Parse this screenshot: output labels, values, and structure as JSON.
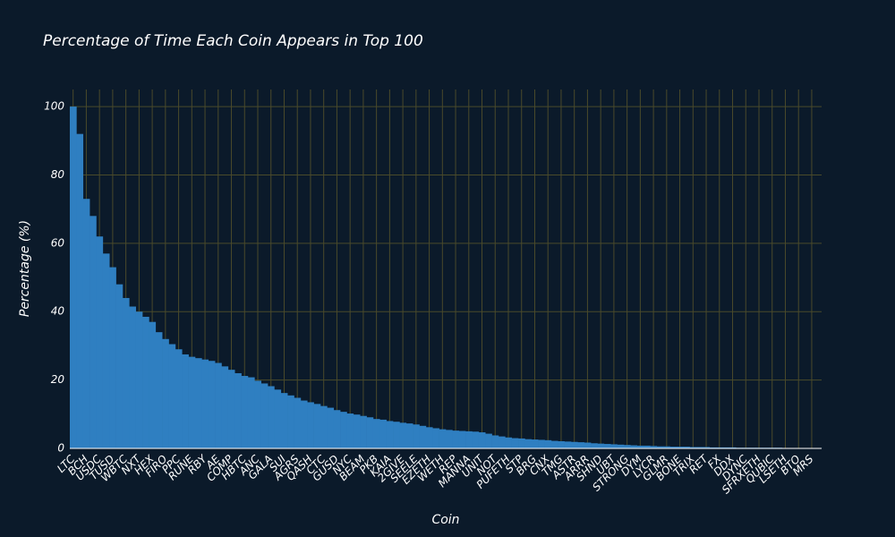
{
  "chart_data": {
    "type": "bar",
    "title": "Percentage of Time Each Coin Appears in Top 100",
    "xlabel": "Coin",
    "ylabel": "Percentage (%)",
    "color": "#2f7fc1",
    "grid": true,
    "categories": [
      "LTC",
      null,
      "BCH",
      null,
      "USDC",
      null,
      "TUSD",
      null,
      "WBTC",
      null,
      "NXT",
      null,
      "HEX",
      null,
      "FIRO",
      null,
      "PPC",
      null,
      "RUNE",
      null,
      "RBY",
      null,
      "AE",
      null,
      "COMP",
      null,
      "HBTC",
      null,
      "ANC",
      null,
      "GALA",
      null,
      "SUI",
      null,
      "AGRS",
      null,
      "QASH",
      null,
      "CTC",
      null,
      "GUSD",
      null,
      "NYC",
      null,
      "BEAM",
      null,
      "PKB",
      null,
      "KAIA",
      null,
      "2GIVE",
      null,
      "SEELE",
      null,
      "EZETH",
      null,
      "WETH",
      null,
      "REP",
      null,
      "MANNA",
      null,
      "UNIT",
      null,
      "NOT",
      null,
      "PUFETH",
      null,
      "STP",
      null,
      "BRG",
      null,
      "CNX",
      null,
      "TMG",
      null,
      "ASTR",
      null,
      "ARRR",
      null,
      "SHND",
      null,
      "UBT",
      null,
      "STRONG",
      null,
      "DYM",
      null,
      "LYCR",
      null,
      "GLMR",
      null,
      "BONE",
      null,
      "TRIX",
      null,
      "RET",
      null,
      "FX",
      null,
      "DDX",
      null,
      "DYNC",
      null,
      "SFRXETH",
      null,
      "QUBIC",
      null,
      "LSETH",
      null,
      "BTO",
      null,
      "MRS",
      null
    ],
    "values": [
      100,
      92,
      73,
      68,
      62,
      57,
      53,
      48,
      44,
      41.5,
      40,
      38.5,
      37,
      34,
      32,
      30.5,
      29,
      27.5,
      26.8,
      26.4,
      26,
      25.6,
      25,
      24,
      23,
      22,
      21.2,
      20.8,
      19.8,
      19,
      18.2,
      17.2,
      16.2,
      15.5,
      14.8,
      14,
      13.5,
      13,
      12.4,
      11.9,
      11.2,
      10.7,
      10.2,
      9.9,
      9.5,
      9.1,
      8.6,
      8.4,
      8,
      7.8,
      7.5,
      7.3,
      7,
      6.6,
      6.2,
      5.9,
      5.6,
      5.4,
      5.2,
      5.1,
      5,
      4.9,
      4.7,
      4.3,
      3.8,
      3.5,
      3.2,
      3,
      2.9,
      2.7,
      2.6,
      2.5,
      2.4,
      2.2,
      2.1,
      2,
      1.9,
      1.8,
      1.7,
      1.5,
      1.4,
      1.3,
      1.2,
      1.1,
      1,
      0.9,
      0.8,
      0.8,
      0.7,
      0.6,
      0.6,
      0.5,
      0.5,
      0.5,
      0.4,
      0.4,
      0.4,
      0.3,
      0.3,
      0.3,
      0.3,
      0.2,
      0.2,
      0.2,
      0.2,
      0.2,
      0.2,
      0.2,
      0.1,
      0.1,
      0.1,
      0.1,
      0.1,
      0.1
    ],
    "ylim": [
      0,
      105
    ],
    "yticks": [
      0,
      20,
      40,
      60,
      80,
      100
    ]
  }
}
